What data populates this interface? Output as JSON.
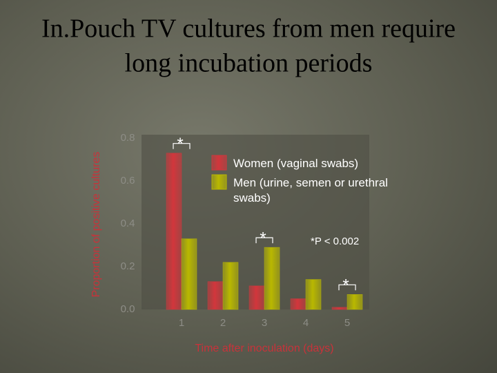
{
  "chart_data": {
    "type": "bar",
    "title": [
      "In.Pouch TV cultures from men require",
      "long incubation periods"
    ],
    "x_label": "Time after inoculation (days)",
    "y_label": "Proportion of positive cultures",
    "categories": [
      "1",
      "2",
      "3",
      "4",
      "5"
    ],
    "series": [
      {
        "name": "Women (vaginal swabs)",
        "color": "#d2363c",
        "values": [
          0.73,
          0.13,
          0.11,
          0.05,
          0.01
        ]
      },
      {
        "name": "Men (urine, semen or urethral swabs)",
        "color": "#b9b800",
        "values": [
          0.33,
          0.22,
          0.29,
          0.14,
          0.07
        ]
      }
    ],
    "significance_marks": [
      "*",
      null,
      "*",
      null,
      "*"
    ],
    "footnote": "*P < 0.002",
    "ylim": [
      0,
      0.8
    ],
    "yticks": [
      {
        "value": 0,
        "label": "0.0"
      },
      0.2,
      0.4,
      0.6,
      0.8
    ]
  }
}
